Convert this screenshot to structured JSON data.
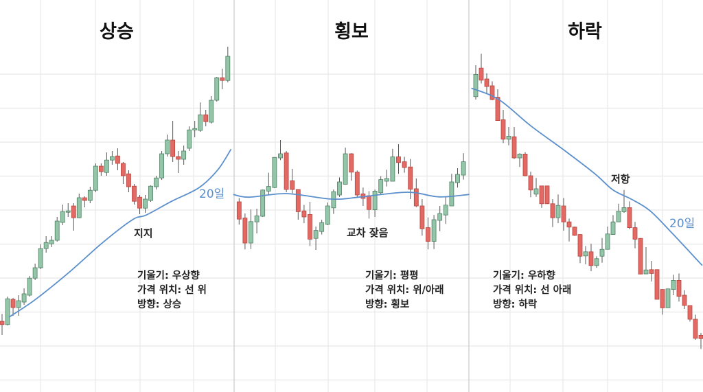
{
  "chart_data": [
    {
      "type": "candlestick",
      "title": "상승",
      "ma_label": "20일",
      "annotation": "지지",
      "info": [
        "기울기: 우상향",
        "가격 위치: 선 위",
        "방향: 상승"
      ],
      "grid": true,
      "candles_ohlc": [
        [
          13,
          15.7,
          8,
          11.8
        ],
        [
          11.8,
          22,
          11.5,
          21.2
        ],
        [
          21,
          21.5,
          15,
          18
        ],
        [
          18,
          22.5,
          15,
          20.5
        ],
        [
          20,
          25,
          19,
          23
        ],
        [
          22.5,
          29.5,
          22,
          28.7
        ],
        [
          28.7,
          34,
          28,
          32.5
        ],
        [
          32.5,
          41,
          32,
          39.5
        ],
        [
          39.5,
          44,
          38,
          41.7
        ],
        [
          41.2,
          44,
          40,
          42.5
        ],
        [
          42.5,
          51,
          42,
          49.5
        ],
        [
          49,
          55.5,
          48,
          53
        ],
        [
          52.7,
          56,
          51,
          53.2
        ],
        [
          55,
          56,
          46,
          50.7
        ],
        [
          50.7,
          59.5,
          50.5,
          58
        ],
        [
          58,
          58.5,
          54.5,
          57
        ],
        [
          57,
          62,
          56,
          60.7
        ],
        [
          60.7,
          70.5,
          60,
          69.5
        ],
        [
          69.5,
          70.5,
          66,
          67.5
        ],
        [
          67.2,
          74.5,
          66,
          71.7
        ],
        [
          71.7,
          75,
          70,
          73
        ],
        [
          73.2,
          76,
          68,
          70.5
        ],
        [
          70.5,
          71,
          63,
          66
        ],
        [
          66.7,
          68,
          60,
          62
        ],
        [
          62.2,
          63,
          55.5,
          56.7
        ],
        [
          58.2,
          59,
          52,
          54.2
        ],
        [
          54.2,
          59,
          52.5,
          57.5
        ],
        [
          57,
          62.5,
          56.5,
          62.2
        ],
        [
          62,
          66,
          61,
          65.2
        ],
        [
          65.2,
          75,
          64.5,
          74
        ],
        [
          74,
          81,
          73,
          79
        ],
        [
          79,
          86,
          71,
          73
        ],
        [
          73,
          75,
          67,
          72
        ],
        [
          72,
          77,
          70,
          75
        ],
        [
          76,
          84,
          75,
          82.7
        ],
        [
          82.7,
          86,
          80,
          83.2
        ],
        [
          82.5,
          92.7,
          82,
          88.2
        ],
        [
          88.2,
          90,
          84,
          85.7
        ],
        [
          85.5,
          95,
          85,
          93.5
        ],
        [
          93.5,
          102,
          93,
          101.7
        ],
        [
          101.7,
          105,
          97.5,
          100.7
        ],
        [
          100.7,
          113,
          100,
          109.5
        ]
      ],
      "ma20": [
        [
          1.25,
          14.5
        ],
        [
          5.9,
          20.7
        ],
        [
          12.1,
          30.7
        ],
        [
          18.3,
          41.7
        ],
        [
          23.7,
          50
        ],
        [
          26.2,
          51.7
        ],
        [
          30.8,
          56.7
        ],
        [
          35.8,
          61.7
        ],
        [
          39.2,
          68.2
        ],
        [
          41.6,
          75.7
        ]
      ]
    },
    {
      "type": "candlestick",
      "title": "횡보",
      "annotation": "교차 잦음",
      "info": [
        "기울기: 평평",
        "가격 위치: 위/아래",
        "방향: 횡보"
      ],
      "grid": true,
      "candles_ohlc": [
        [
          56.5,
          57.9,
          48.2,
          50.2
        ],
        [
          50.6,
          52.3,
          39.2,
          41.5
        ],
        [
          41.5,
          53.75,
          39.3,
          49.3
        ],
        [
          49.2,
          54,
          45,
          51.4
        ],
        [
          51.25,
          61,
          51,
          60.8
        ],
        [
          60.4,
          67.1,
          59.2,
          62.1
        ],
        [
          61.7,
          72.7,
          61.5,
          72.7
        ],
        [
          72.5,
          79,
          71.7,
          74
        ],
        [
          74.3,
          75,
          60,
          61
        ],
        [
          64.2,
          68.5,
          59.6,
          61
        ],
        [
          61,
          61,
          50,
          52.9
        ],
        [
          53.2,
          55.4,
          48.75,
          51
        ],
        [
          51.9,
          56.5,
          40.4,
          42.9
        ],
        [
          43.2,
          47.5,
          39,
          46.1
        ],
        [
          45.7,
          50,
          44.6,
          48.9
        ],
        [
          48.3,
          56.25,
          48,
          55
        ],
        [
          54.3,
          61,
          52.1,
          60.2
        ],
        [
          59,
          65.4,
          58.3,
          63.75
        ],
        [
          62.9,
          76.25,
          62.9,
          74
        ],
        [
          74,
          74.2,
          64.2,
          67.3
        ],
        [
          67.3,
          67.9,
          58.3,
          59
        ],
        [
          59.4,
          61.7,
          55,
          57.75
        ],
        [
          58.75,
          60.4,
          50.4,
          53.7
        ],
        [
          53.6,
          61,
          51,
          60.4
        ],
        [
          59.8,
          65.8,
          59.2,
          64.6
        ],
        [
          64,
          68.2,
          62.1,
          65
        ],
        [
          64,
          75.8,
          64,
          72.9
        ],
        [
          72.9,
          77.5,
          66.7,
          70.8
        ],
        [
          71.1,
          72.9,
          67.1,
          69
        ],
        [
          69.2,
          72.1,
          57.5,
          61.1
        ],
        [
          61.25,
          65,
          54.6,
          55
        ],
        [
          55,
          57.5,
          44.2,
          46.7
        ],
        [
          47.1,
          50.8,
          39.2,
          42.1
        ],
        [
          42.1,
          51.7,
          39.3,
          50
        ],
        [
          49.75,
          55,
          45.8,
          52.25
        ],
        [
          51.7,
          58.3,
          48.5,
          55.3
        ],
        [
          55,
          66.7,
          55,
          63.75
        ],
        [
          63.5,
          68.75,
          61.7,
          66.5
        ],
        [
          66.25,
          74.2,
          64.6,
          71.1
        ]
      ],
      "ma20": [
        [
          -1,
          59.2
        ],
        [
          1.7,
          58.2
        ],
        [
          8,
          59.5
        ],
        [
          15.7,
          57.5
        ],
        [
          20.7,
          58.3
        ],
        [
          28.5,
          60
        ],
        [
          33.9,
          58.3
        ],
        [
          39,
          59.2
        ]
      ]
    },
    {
      "type": "candlestick",
      "title": "하락",
      "ma_label": "20일",
      "annotation": "저항",
      "info": [
        "기울기: 우하향",
        "가격 위치: 선 아래",
        "방향: 하락"
      ],
      "grid": true,
      "candles_ohlc": [
        [
          94.8,
          106.25,
          93.75,
          102.9
        ],
        [
          105.2,
          110.4,
          99.6,
          100.8
        ],
        [
          101.25,
          103.3,
          95.8,
          98.5
        ],
        [
          98.75,
          100.4,
          93.5,
          93.75
        ],
        [
          94.6,
          97.5,
          86.1,
          86.1
        ],
        [
          86.4,
          90,
          77.9,
          79.3
        ],
        [
          79.3,
          83.75,
          77.1,
          80.4
        ],
        [
          80.2,
          83.75,
          72.1,
          72.5
        ],
        [
          72.5,
          74.2,
          69.2,
          73.9
        ],
        [
          73.9,
          74.6,
          65.8,
          66
        ],
        [
          66,
          67.5,
          58.2,
          60.8
        ],
        [
          59.3,
          65.2,
          58.3,
          61.25
        ],
        [
          62.3,
          62.3,
          54.3,
          55.8
        ],
        [
          62.3,
          62.3,
          55.8,
          55.8
        ],
        [
          55.8,
          57.5,
          47.3,
          50.7
        ],
        [
          50.7,
          59.2,
          48.75,
          55.2
        ],
        [
          55,
          57.9,
          46,
          49.2
        ],
        [
          49.2,
          50.4,
          42.1,
          47.3
        ],
        [
          47.3,
          47.5,
          44.1,
          44.3
        ],
        [
          44.6,
          44.6,
          34.2,
          36.7
        ],
        [
          36.8,
          40.4,
          33.75,
          38.3
        ],
        [
          38.3,
          41.25,
          31.25,
          33.3
        ],
        [
          33.3,
          36.7,
          32.5,
          35.8
        ],
        [
          36.7,
          43.3,
          34.3,
          39.2
        ],
        [
          39.2,
          47.5,
          39.2,
          44.8
        ],
        [
          44.6,
          51.7,
          44.6,
          49.2
        ],
        [
          49.2,
          55.8,
          49.2,
          53.1
        ],
        [
          52.9,
          60.8,
          52.5,
          54.4
        ],
        [
          54.4,
          56.7,
          46.5,
          47.1
        ],
        [
          47.1,
          49.2,
          39.6,
          42.9
        ],
        [
          43.2,
          43.3,
          30.2,
          30.2
        ],
        [
          30.25,
          40,
          30.2,
          31.7
        ],
        [
          31.8,
          35,
          27.5,
          30.4
        ],
        [
          31.8,
          31.9,
          21,
          21
        ],
        [
          24.6,
          24.6,
          15.4,
          17.9
        ],
        [
          17.9,
          24.8,
          17.9,
          24.8
        ],
        [
          24.6,
          30,
          22.5,
          27.9
        ],
        [
          27.9,
          30.4,
          20.2,
          22.1
        ],
        [
          22.5,
          24.3,
          17.5,
          18.75
        ],
        [
          18.75,
          18.75,
          12.9,
          13.75
        ],
        [
          13.75,
          15.4,
          6.25,
          6.8
        ],
        [
          7.9,
          8.75,
          2.9,
          6.7
        ]
      ],
      "ma20": [
        [
          -0.8,
          97.9
        ],
        [
          4.2,
          93.75
        ],
        [
          10,
          84.2
        ],
        [
          16.3,
          75
        ],
        [
          21.7,
          66.7
        ],
        [
          25,
          60.8
        ],
        [
          28.3,
          57.5
        ],
        [
          31.7,
          53.3
        ],
        [
          35.8,
          45
        ],
        [
          41.25,
          33.3
        ]
      ]
    }
  ],
  "colors": {
    "up_fill": "#93c6a8",
    "up_stroke": "#4f7d63",
    "down_fill": "#e36a64",
    "down_stroke": "#b5423d",
    "wick": "#555555",
    "ma": "#5b8fcc",
    "grid": "#e6e6e6",
    "divider": "#c8c8c8"
  }
}
